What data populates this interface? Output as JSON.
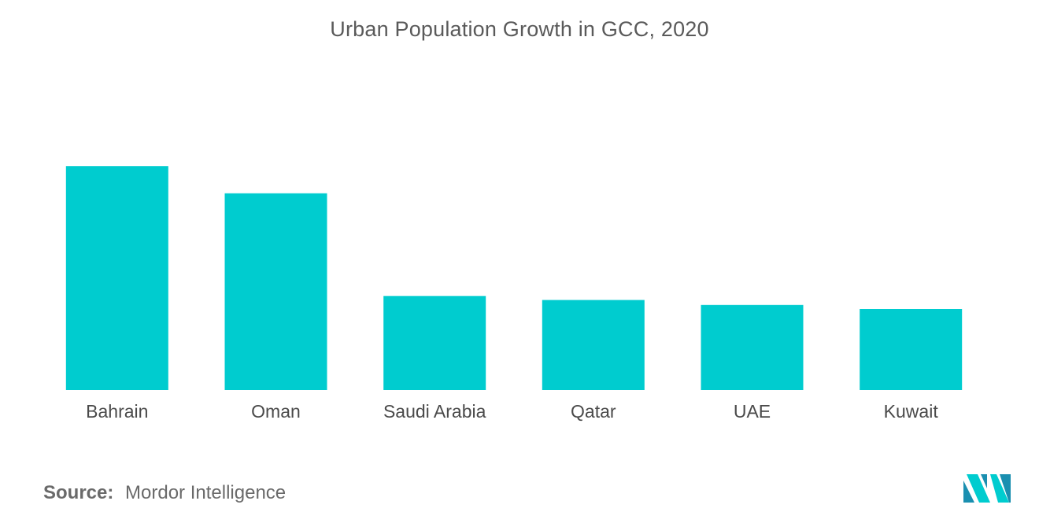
{
  "chart_data": {
    "type": "bar",
    "title": "Urban Population Growth in GCC, 2020",
    "categories": [
      "Bahrain",
      "Oman",
      "Saudi Arabia",
      "Qatar",
      "UAE",
      "Kuwait"
    ],
    "values": [
      4.45,
      3.91,
      1.87,
      1.79,
      1.69,
      1.61
    ],
    "xlabel": "",
    "ylabel": "",
    "ylim": [
      0,
      5
    ],
    "grid": false,
    "legend": "none",
    "bar_color": "#00cccf"
  },
  "source": {
    "label": "Source:",
    "text": "Mordor Intelligence"
  },
  "logo": {
    "icon": "mordor-intelligence-logo-icon",
    "colors": [
      "#1a8fb0",
      "#00cccf"
    ]
  }
}
